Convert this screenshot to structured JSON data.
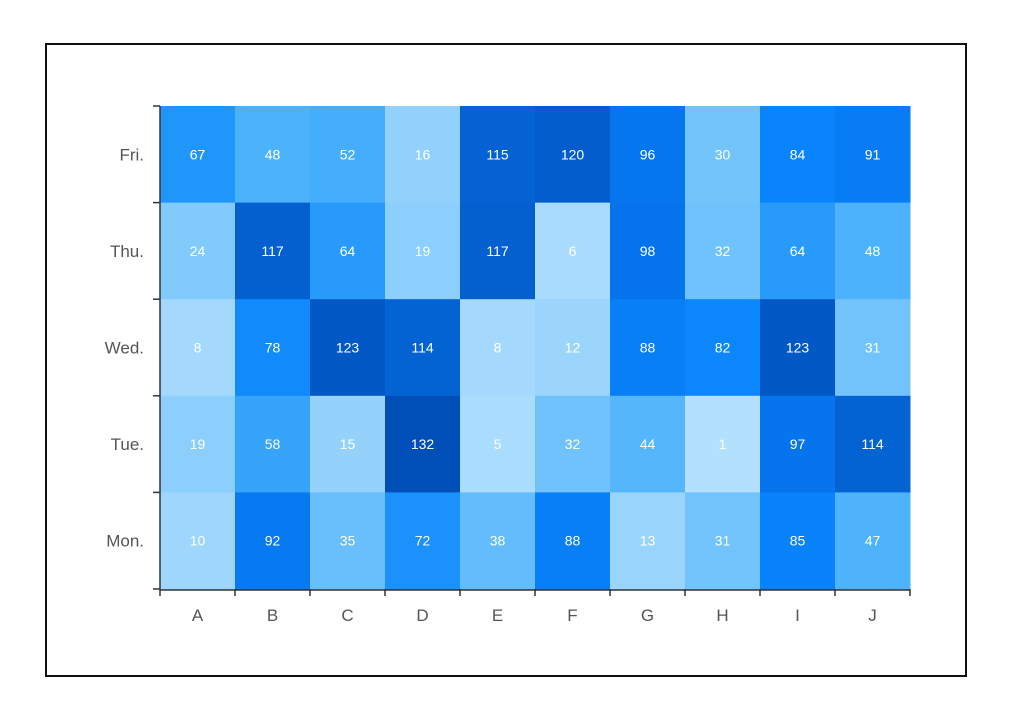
{
  "colors": {
    "scale": [
      "#b3e0fd",
      "#8fd0fc",
      "#6cc0fc",
      "#48b0fc",
      "#2297fa",
      "#0a85fd",
      "#0572ea",
      "#0461d1",
      "#004fb9"
    ],
    "label_light": "#ffffff",
    "frame": "#111111",
    "axis": "#333333"
  },
  "chart_data": {
    "type": "heatmap",
    "x_categories": [
      "A",
      "B",
      "C",
      "D",
      "E",
      "F",
      "G",
      "H",
      "I",
      "J"
    ],
    "y_categories": [
      "Fri.",
      "Thu.",
      "Wed.",
      "Tue.",
      "Mon."
    ],
    "values": [
      [
        67,
        48,
        52,
        16,
        115,
        120,
        96,
        30,
        84,
        91
      ],
      [
        24,
        117,
        64,
        19,
        117,
        6,
        98,
        32,
        64,
        48
      ],
      [
        8,
        78,
        123,
        114,
        8,
        12,
        88,
        82,
        123,
        31
      ],
      [
        19,
        58,
        15,
        132,
        5,
        32,
        44,
        1,
        97,
        114
      ],
      [
        10,
        92,
        35,
        72,
        38,
        88,
        13,
        31,
        85,
        47
      ]
    ],
    "value_range": [
      1,
      132
    ],
    "cell_labels": true,
    "legend": "none",
    "grid": false
  }
}
